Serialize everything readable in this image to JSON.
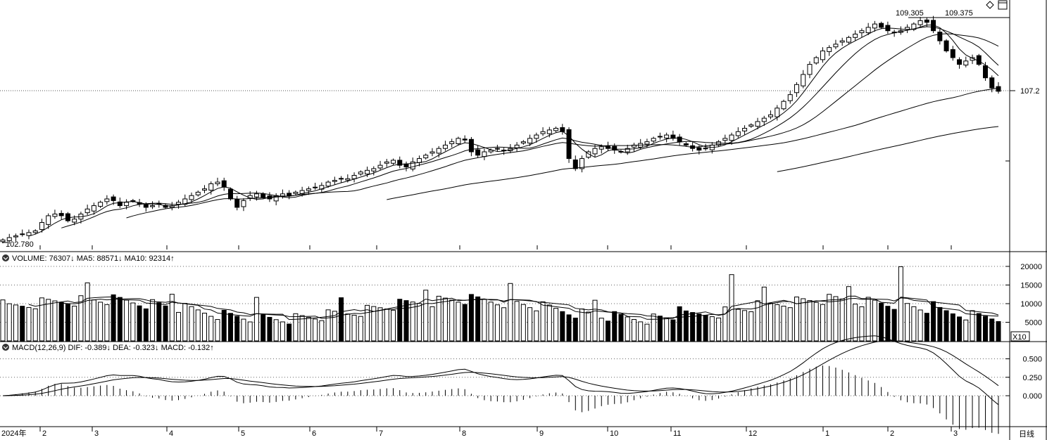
{
  "window": {
    "period_label": "日线",
    "scale_label": "X10"
  },
  "chart_data": [
    {
      "type": "candlestick",
      "panel": "price",
      "y_range": [
        102.6,
        109.6
      ],
      "last_price": "107.2",
      "high_label": "109.375",
      "high_label_2": "109.305",
      "low_label": "102.780",
      "y_ticks": [
        "107.2"
      ],
      "ma_lines": [
        "MA5",
        "MA10",
        "MA20",
        "MA60",
        "MA120"
      ],
      "close_series": [
        102.78,
        102.85,
        102.9,
        102.95,
        103.0,
        103.05,
        103.3,
        103.5,
        103.55,
        103.5,
        103.35,
        103.4,
        103.55,
        103.7,
        103.8,
        103.9,
        104.0,
        103.95,
        103.8,
        103.9,
        103.95,
        103.85,
        103.75,
        103.8,
        103.85,
        103.75,
        103.8,
        103.9,
        104.0,
        104.1,
        104.2,
        104.3,
        104.45,
        104.5,
        104.35,
        104.0,
        103.75,
        103.95,
        104.1,
        104.15,
        104.05,
        104.0,
        104.1,
        104.15,
        104.1,
        104.2,
        104.25,
        104.3,
        104.35,
        104.4,
        104.5,
        104.55,
        104.6,
        104.6,
        104.7,
        104.8,
        104.85,
        104.9,
        105.0,
        105.1,
        105.15,
        105.0,
        104.95,
        105.1,
        105.2,
        105.3,
        105.4,
        105.5,
        105.6,
        105.7,
        105.8,
        105.75,
        105.4,
        105.3,
        105.4,
        105.45,
        105.5,
        105.45,
        105.5,
        105.6,
        105.7,
        105.8,
        105.9,
        106.0,
        106.05,
        106.1,
        106.0,
        105.2,
        104.9,
        105.2,
        105.4,
        105.5,
        105.55,
        105.5,
        105.45,
        105.4,
        105.5,
        105.6,
        105.65,
        105.7,
        105.8,
        105.85,
        105.9,
        105.8,
        105.7,
        105.6,
        105.5,
        105.45,
        105.5,
        105.6,
        105.7,
        105.8,
        105.9,
        106.0,
        106.1,
        106.2,
        106.3,
        106.4,
        106.5,
        106.7,
        106.9,
        107.1,
        107.4,
        107.7,
        108.0,
        108.2,
        108.4,
        108.5,
        108.6,
        108.7,
        108.8,
        108.9,
        109.0,
        109.1,
        109.2,
        109.1,
        109.0,
        108.95,
        109.0,
        109.1,
        109.2,
        109.3,
        109.25,
        109.0,
        108.7,
        108.4,
        108.2,
        108.0,
        108.1,
        108.2,
        108.0,
        107.6,
        107.3,
        107.2
      ]
    },
    {
      "type": "bar",
      "panel": "volume",
      "indicator": "VOLUME",
      "values_label": {
        "VOLUME": "76307",
        "MA5": "88571",
        "MA10": "92314"
      },
      "y_ticks": [
        "20000",
        "15000",
        "10000",
        "5000"
      ],
      "y_range": [
        0,
        20000
      ]
    },
    {
      "type": "bar",
      "panel": "macd",
      "indicator": "MACD(12,26,9)",
      "values_label": {
        "DIF": "-0.389",
        "DEA": "-0.323",
        "MACD": "-0.132"
      },
      "y_ticks": [
        "0.500",
        "0.250",
        "0.000"
      ],
      "y_range": [
        -0.4,
        0.6
      ]
    }
  ],
  "x_axis": {
    "labels": [
      "2024年",
      "2",
      "3",
      "4",
      "5",
      "6",
      "7",
      "8",
      "9",
      "10",
      "11",
      "12",
      "1",
      "2",
      "3"
    ]
  },
  "text": {
    "vol_name": "VOLUME: ",
    "vol_val": "76307",
    "vol_ma5": "MA5: ",
    "vol_ma5_val": "88571",
    "vol_ma10": "MA10: ",
    "vol_ma10_val": "92314",
    "macd_name": "MACD(12,26,9)",
    "dif": "DIF: ",
    "dif_val": "-0.389",
    "dea": "DEA: ",
    "dea_val": "-0.323",
    "macd": "MACD: ",
    "macd_val": "-0.132"
  }
}
